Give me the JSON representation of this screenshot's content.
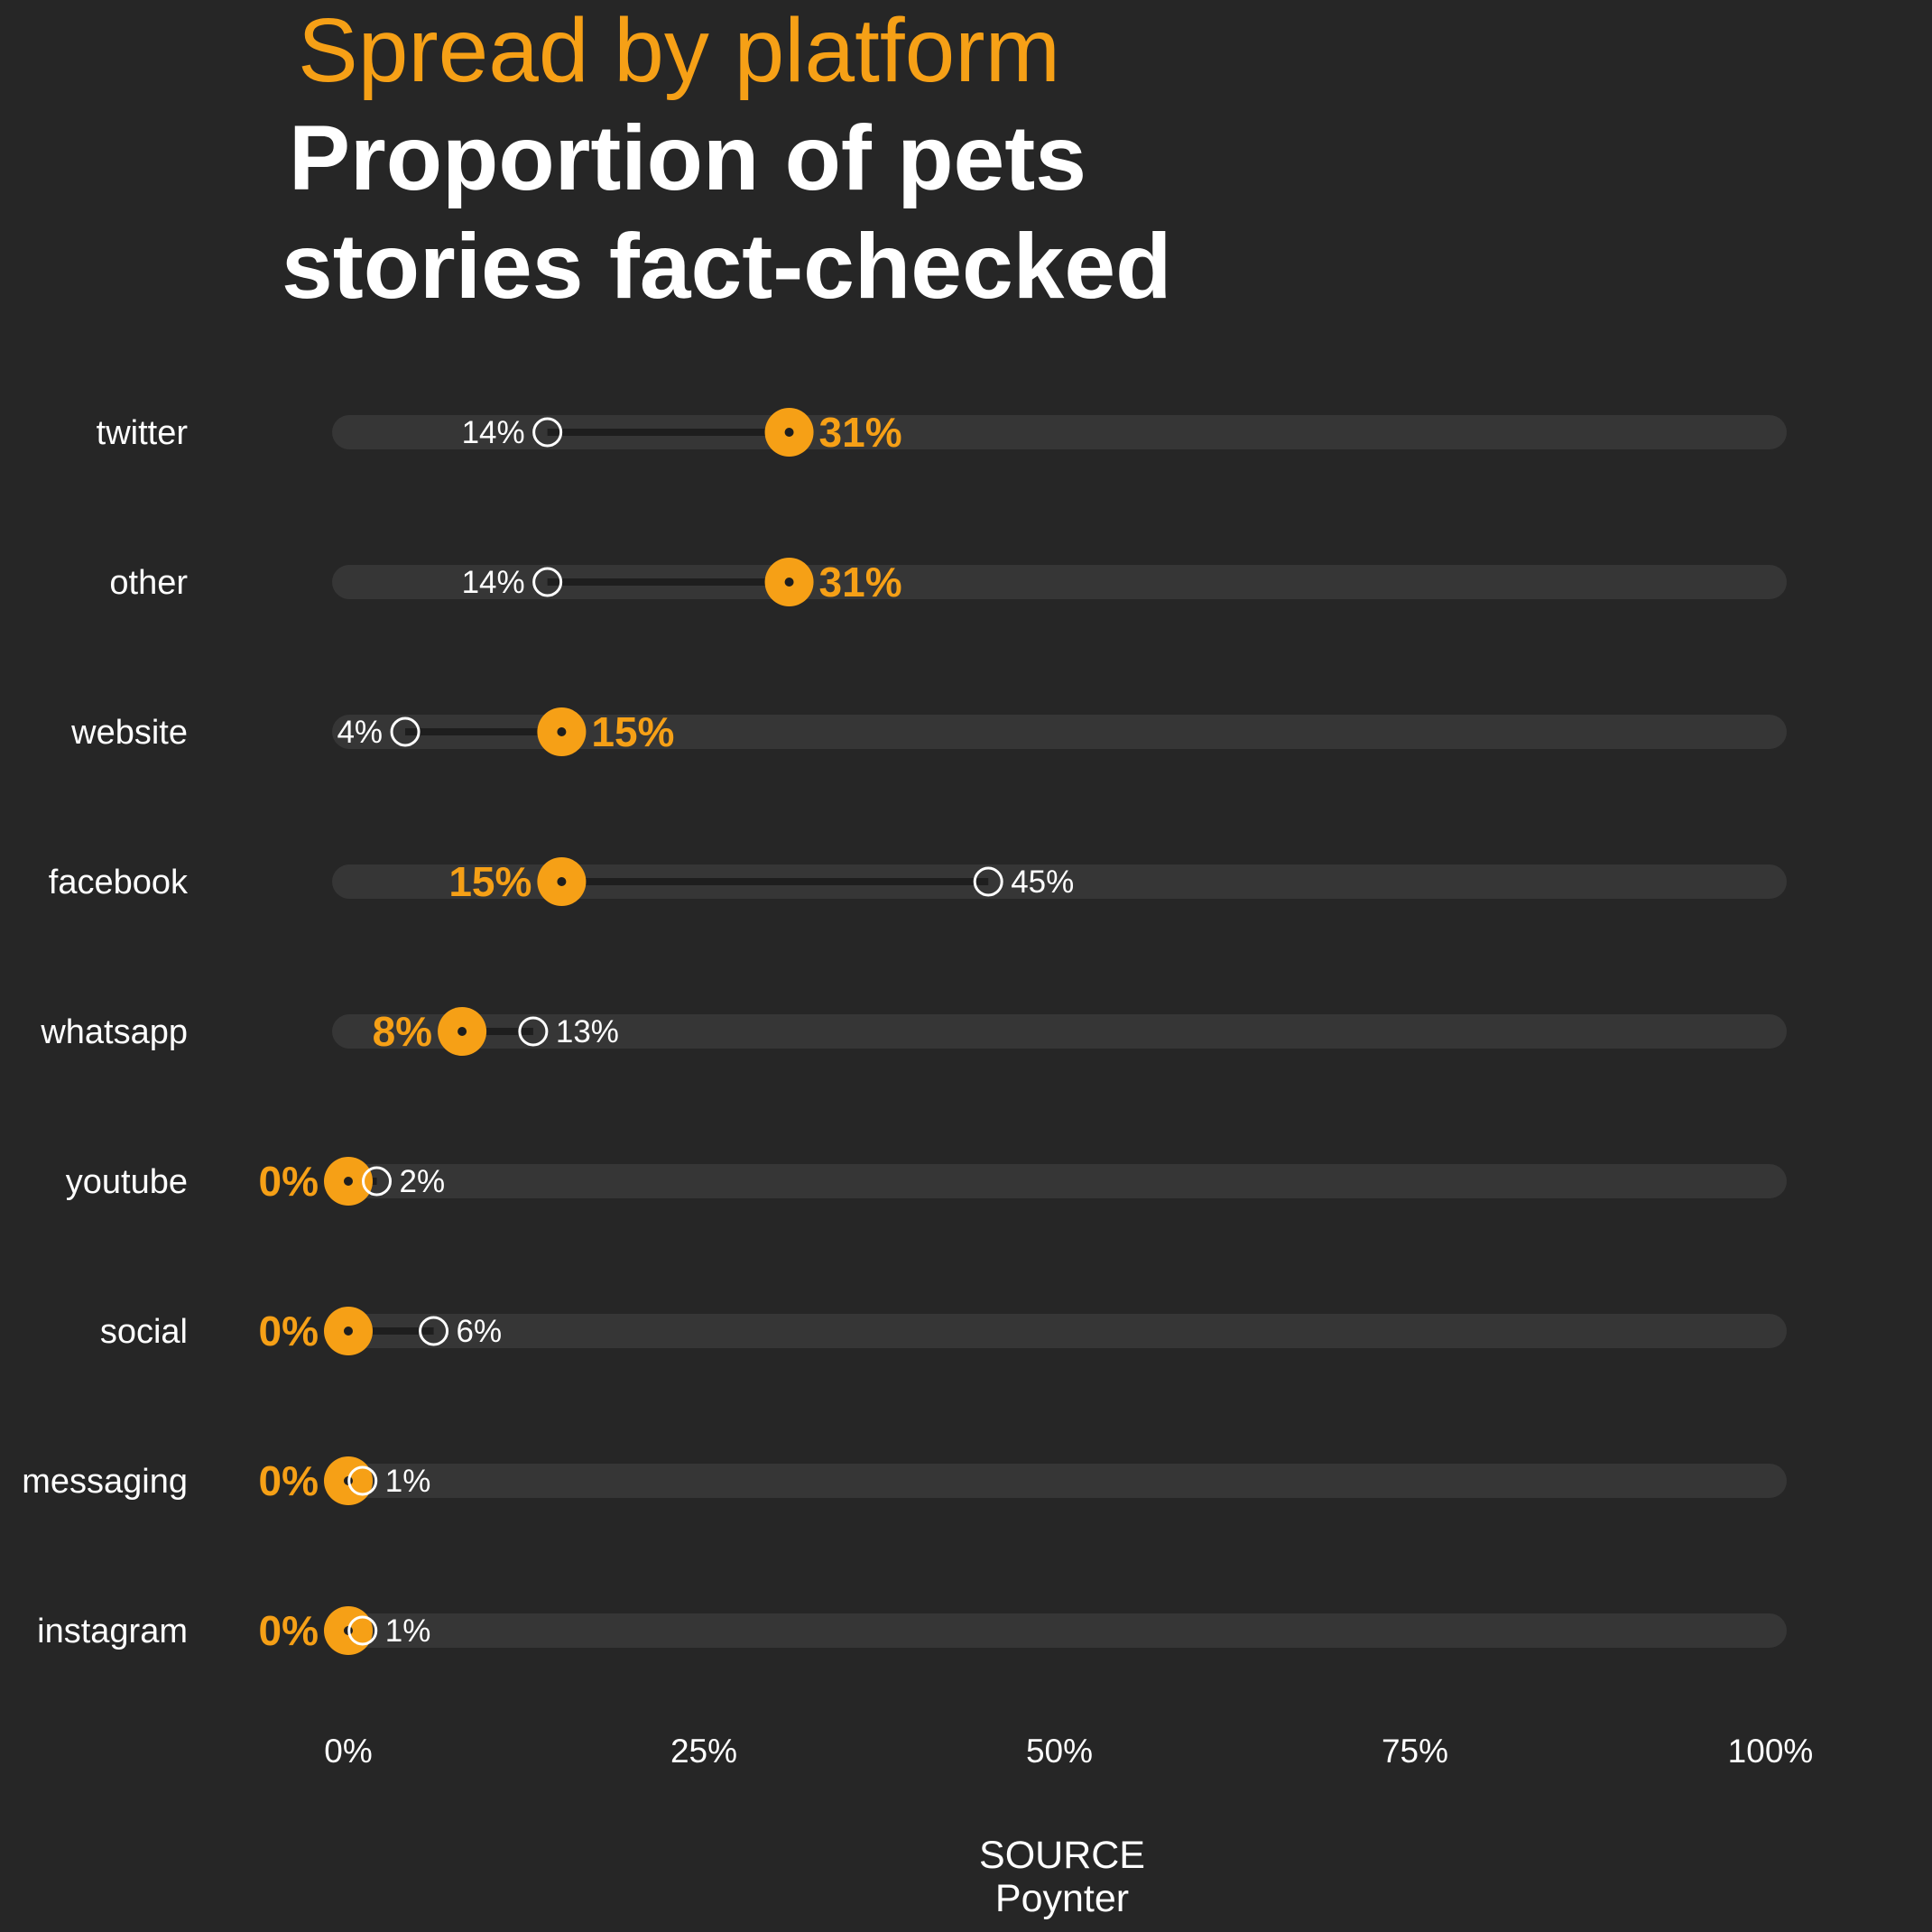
{
  "header": {
    "subtitle": "Spread by platform",
    "title_lines": [
      "Proportion of pets",
      "stories fact-checked"
    ]
  },
  "footer": {
    "source_label": "SOURCE",
    "source_name": "Poynter"
  },
  "colors": {
    "background": "#262626",
    "track": "#363636",
    "accent": "#f6a016",
    "text": "#ffffff",
    "link": "#1e1e1e"
  },
  "chart_data": {
    "type": "dumbbell",
    "title": "Proportion of pets stories fact-checked",
    "subtitle": "Spread by platform",
    "categories": [
      "twitter",
      "other",
      "website",
      "facebook",
      "whatsapp",
      "youtube",
      "social",
      "messaging",
      "instagram"
    ],
    "series": [
      {
        "values": [
          31,
          31,
          15,
          15,
          8,
          0,
          0,
          0,
          0
        ],
        "value_labels": [
          "31%",
          "31%",
          "15%",
          "15%",
          "8%",
          "0%",
          "0%",
          "0%",
          "0%"
        ],
        "marker": "filled orange circle",
        "color": "#f6a016"
      },
      {
        "values": [
          14,
          14,
          4,
          45,
          13,
          2,
          6,
          1,
          1
        ],
        "value_labels": [
          "14%",
          "14%",
          "4%",
          "45%",
          "13%",
          "2%",
          "6%",
          "1%",
          "1%"
        ],
        "marker": "hollow white circle",
        "color": "#ffffff"
      }
    ],
    "x_ticks": [
      "0%",
      "25%",
      "50%",
      "75%",
      "100%"
    ],
    "xlim": [
      0,
      100
    ],
    "grid": false,
    "legend": "none",
    "source": "Poynter"
  }
}
